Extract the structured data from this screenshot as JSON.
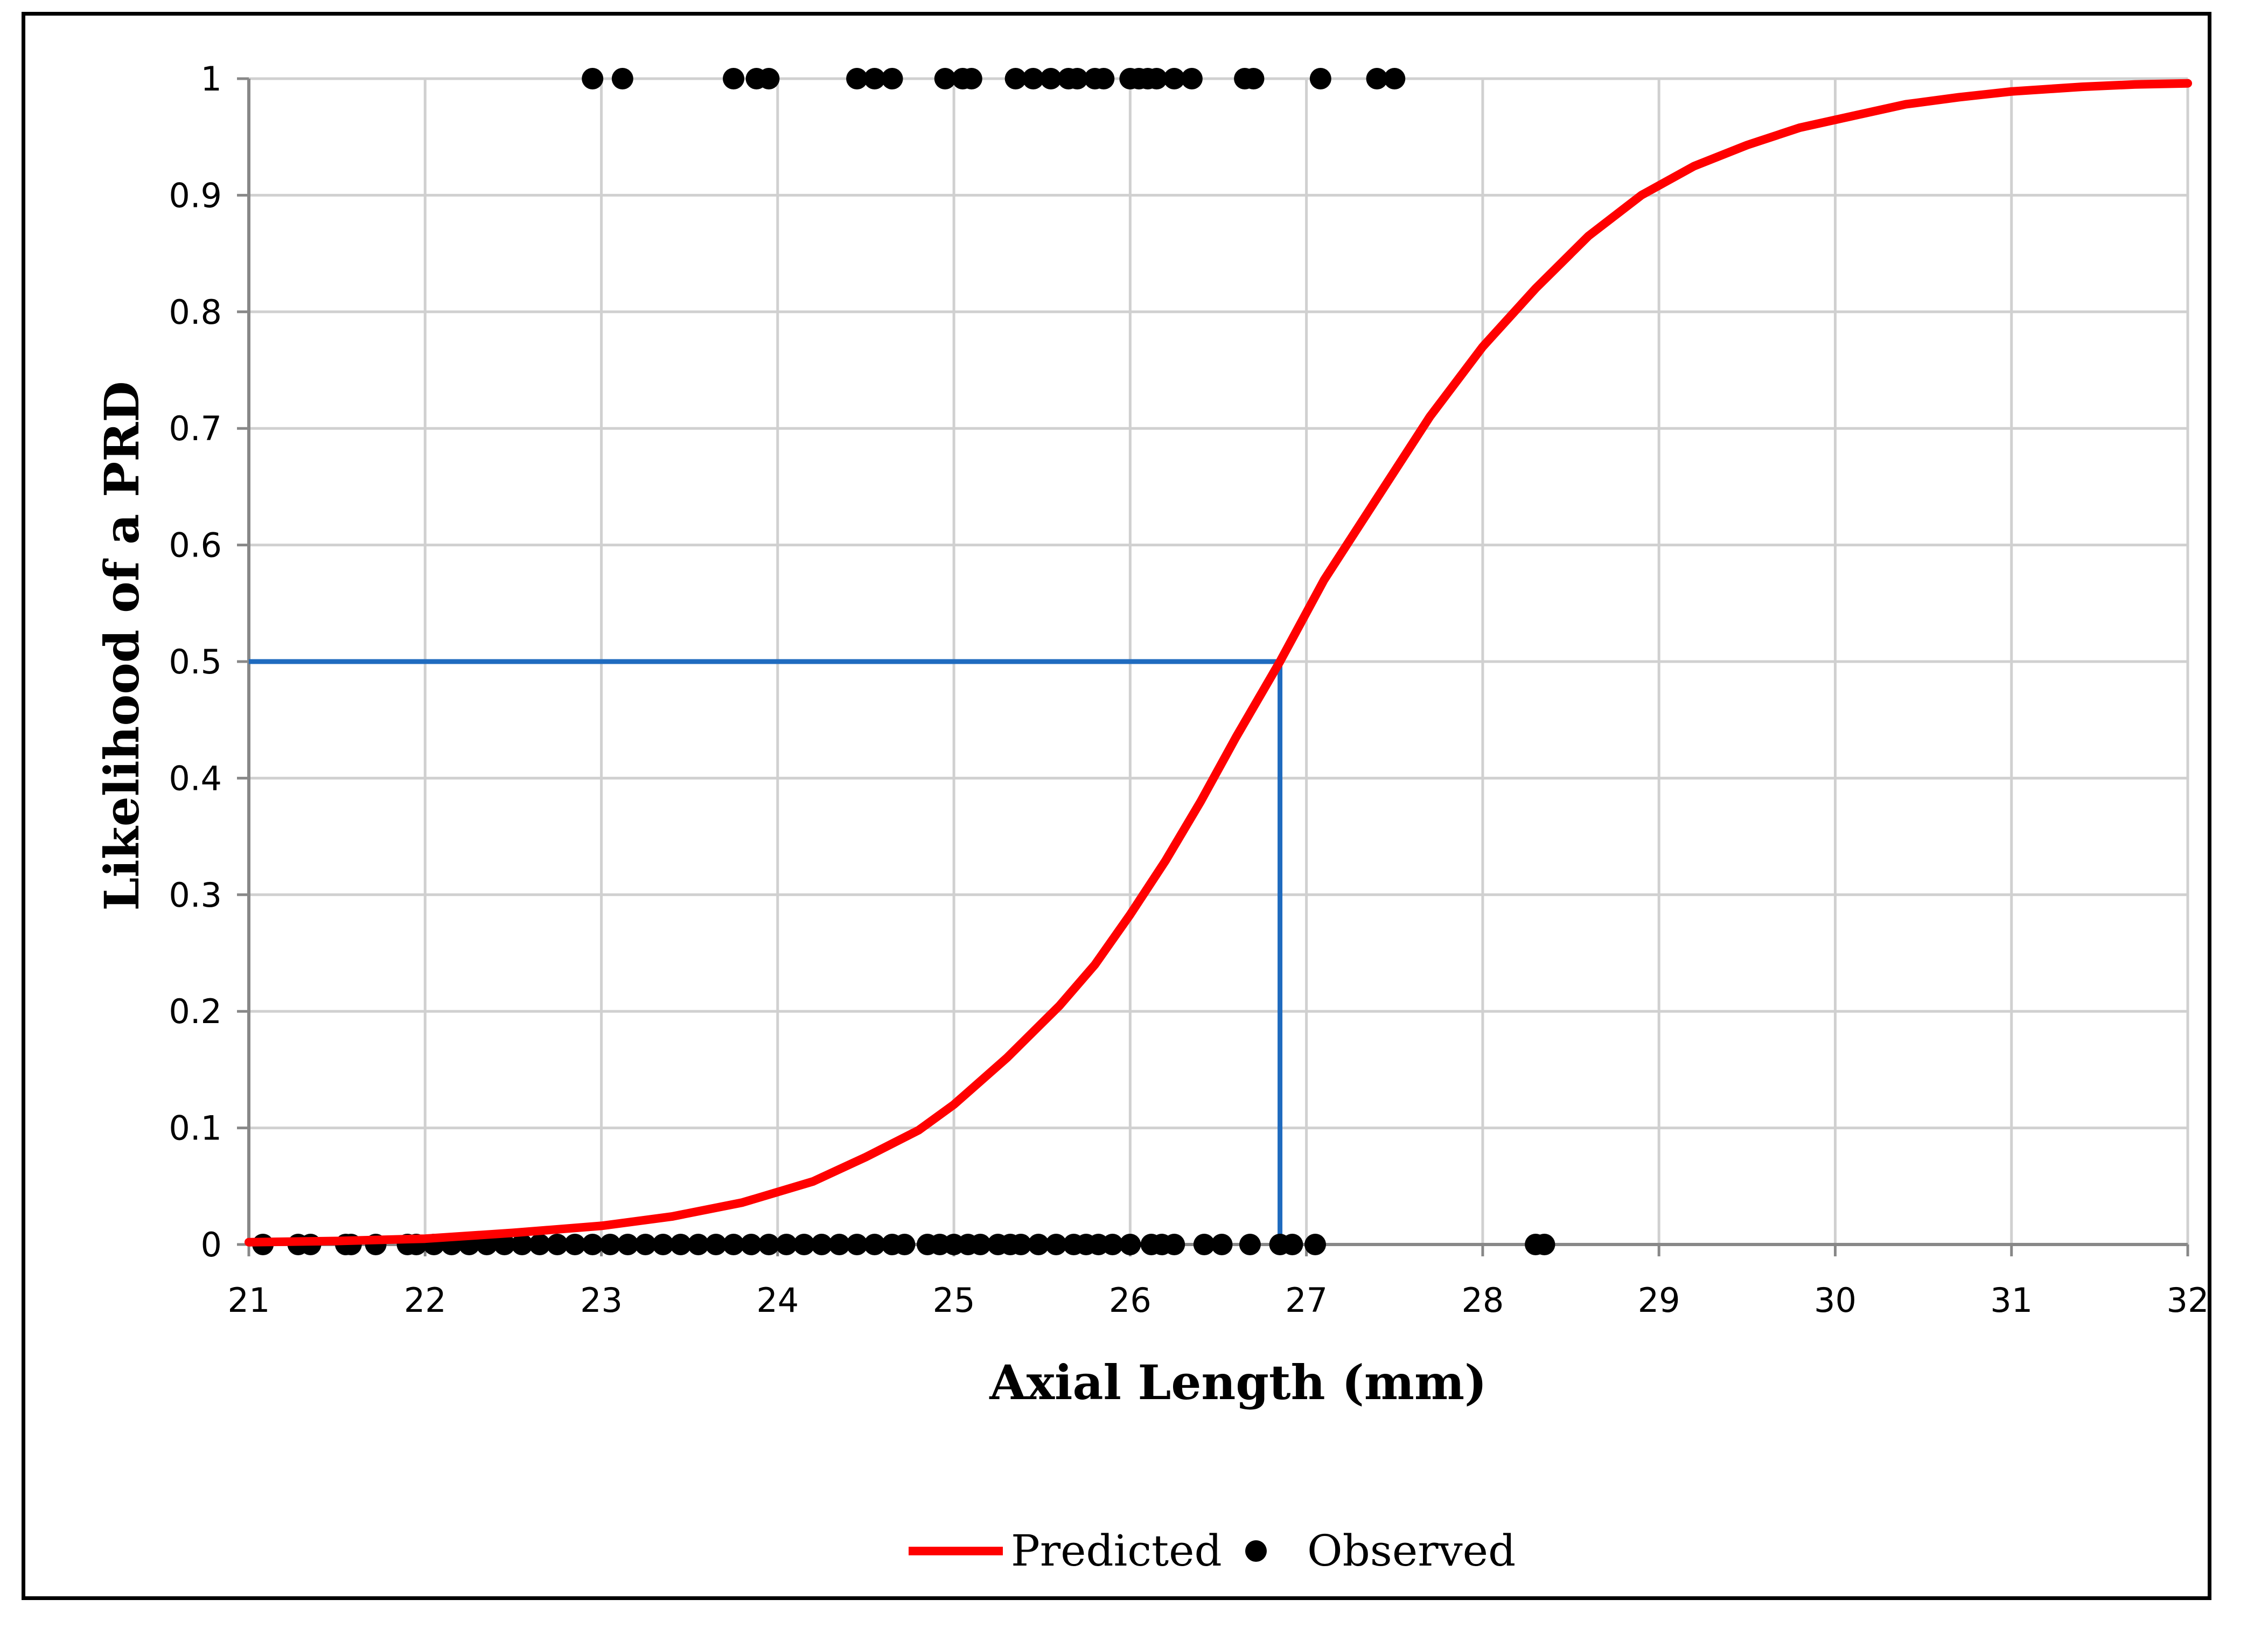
{
  "chart_data": {
    "type": "scatter",
    "title": "",
    "xlabel": "Axial Length (mm)",
    "ylabel": "Likelihood of a PRD",
    "xlim": [
      21,
      32
    ],
    "ylim": [
      0,
      1
    ],
    "x_ticks": [
      21,
      22,
      23,
      24,
      25,
      26,
      27,
      28,
      29,
      30,
      31,
      32
    ],
    "y_ticks": [
      0,
      0.1,
      0.2,
      0.3,
      0.4,
      0.5,
      0.6,
      0.7,
      0.8,
      0.9,
      1
    ],
    "grid": true,
    "legend_position": "bottom-center",
    "colors": {
      "predicted": "#ff0000",
      "observed": "#000000",
      "threshold": "#1f6bbf",
      "grid": "#d0d0d0",
      "axis": "#888888"
    },
    "series": [
      {
        "name": "Predicted",
        "kind": "line",
        "x": [
          21.0,
          21.5,
          22.0,
          22.5,
          23.0,
          23.4,
          23.8,
          24.2,
          24.5,
          24.8,
          25.0,
          25.3,
          25.6,
          25.8,
          26.0,
          26.2,
          26.4,
          26.6,
          26.85,
          27.1,
          27.4,
          27.7,
          28.0,
          28.3,
          28.6,
          28.9,
          29.2,
          29.5,
          29.8,
          30.1,
          30.4,
          30.7,
          31.0,
          31.4,
          31.7,
          32.0
        ],
        "y": [
          0.002,
          0.003,
          0.005,
          0.01,
          0.016,
          0.024,
          0.036,
          0.054,
          0.075,
          0.098,
          0.12,
          0.16,
          0.205,
          0.24,
          0.283,
          0.329,
          0.38,
          0.435,
          0.5,
          0.57,
          0.64,
          0.71,
          0.77,
          0.82,
          0.865,
          0.9,
          0.925,
          0.943,
          0.958,
          0.968,
          0.978,
          0.984,
          0.989,
          0.993,
          0.995,
          0.996
        ]
      },
      {
        "name": "Observed",
        "kind": "scatter",
        "x": [
          22.95,
          23.12,
          23.75,
          23.88,
          23.95,
          24.45,
          24.55,
          24.65,
          24.95,
          25.05,
          25.1,
          25.35,
          25.45,
          25.55,
          25.65,
          25.7,
          25.8,
          25.85,
          26.0,
          26.05,
          26.1,
          26.15,
          26.25,
          26.35,
          26.65,
          26.7,
          27.08,
          27.4,
          27.5,
          21.08,
          21.28,
          21.35,
          21.55,
          21.58,
          21.72,
          21.9,
          21.95,
          22.05,
          22.15,
          22.25,
          22.35,
          22.45,
          22.55,
          22.65,
          22.75,
          22.85,
          22.95,
          23.05,
          23.15,
          23.25,
          23.35,
          23.45,
          23.55,
          23.65,
          23.75,
          23.85,
          23.95,
          24.05,
          24.15,
          24.25,
          24.35,
          24.45,
          24.55,
          24.65,
          24.72,
          24.85,
          24.92,
          25.0,
          25.08,
          25.15,
          25.25,
          25.32,
          25.38,
          25.48,
          25.58,
          25.68,
          25.75,
          25.82,
          25.9,
          26.0,
          26.12,
          26.18,
          26.25,
          26.42,
          26.52,
          26.68,
          26.85,
          26.92,
          27.05,
          28.3,
          28.35
        ],
        "y": [
          1,
          1,
          1,
          1,
          1,
          1,
          1,
          1,
          1,
          1,
          1,
          1,
          1,
          1,
          1,
          1,
          1,
          1,
          1,
          1,
          1,
          1,
          1,
          1,
          1,
          1,
          1,
          1,
          1,
          0,
          0,
          0,
          0,
          0,
          0,
          0,
          0,
          0,
          0,
          0,
          0,
          0,
          0,
          0,
          0,
          0,
          0,
          0,
          0,
          0,
          0,
          0,
          0,
          0,
          0,
          0,
          0,
          0,
          0,
          0,
          0,
          0,
          0,
          0,
          0,
          0,
          0,
          0,
          0,
          0,
          0,
          0,
          0,
          0,
          0,
          0,
          0,
          0,
          0,
          0,
          0,
          0,
          0,
          0,
          0,
          0,
          0,
          0,
          0,
          0,
          0
        ]
      }
    ],
    "threshold": {
      "x": 26.85,
      "y": 0.5
    }
  }
}
